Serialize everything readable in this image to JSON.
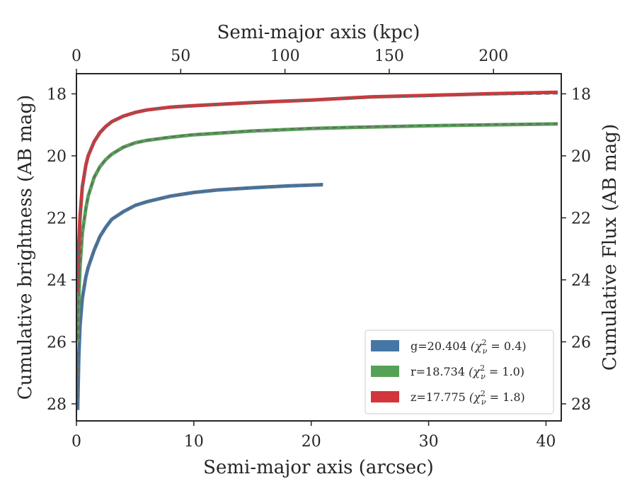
{
  "chart_data": {
    "type": "line",
    "xlabel": "Semi-major axis (arcsec)",
    "x2label": "Semi-major axis (kpc)",
    "ylabel": "Cumulative brightness (AB mag)",
    "y2label": "Cumulative Flux (AB mag)",
    "xlim": [
      0,
      41.3
    ],
    "x2lim": [
      0,
      232.5
    ],
    "ylim": [
      28.55,
      17.35
    ],
    "y_inverted": true,
    "x_ticks": [
      0,
      10,
      20,
      30,
      40
    ],
    "x_tick_labels": [
      "0",
      "10",
      "20",
      "30",
      "40"
    ],
    "x2_ticks": [
      0,
      50,
      100,
      150,
      200
    ],
    "x2_tick_labels": [
      "0",
      "50",
      "100",
      "150",
      "200"
    ],
    "y_ticks": [
      18,
      20,
      22,
      24,
      26,
      28
    ],
    "y_tick_labels": [
      "18",
      "20",
      "22",
      "24",
      "26",
      "28"
    ],
    "grid": false,
    "legend_position": "lower-right",
    "series": [
      {
        "name": "g=20.404 (χ²ν = 0.4)",
        "legend_main": "g=20.404",
        "legend_chi": "(χ",
        "legend_sup": "2",
        "legend_sub": "ν",
        "legend_end": " = 0.4)",
        "color": "#4576a6",
        "x": [
          0.1,
          0.2,
          0.3,
          0.5,
          0.8,
          1.0,
          1.5,
          2.0,
          2.5,
          3.0,
          4.0,
          5.0,
          6.0,
          8.0,
          10.0,
          12.0,
          15.0,
          18.0,
          21.0
        ],
        "y": [
          28.2,
          26.5,
          25.5,
          24.6,
          23.9,
          23.6,
          23.05,
          22.6,
          22.3,
          22.05,
          21.8,
          21.6,
          21.48,
          21.3,
          21.18,
          21.1,
          21.03,
          20.97,
          20.93
        ]
      },
      {
        "name": "r=18.734 (χ²ν = 1.0)",
        "legend_main": "r=18.734",
        "legend_chi": "(χ",
        "legend_sup": "2",
        "legend_sub": "ν",
        "legend_end": " = 1.0)",
        "color": "#57a157",
        "x": [
          0.1,
          0.2,
          0.3,
          0.5,
          0.8,
          1.0,
          1.5,
          2.0,
          2.5,
          3.0,
          4.0,
          5.0,
          6.0,
          8.0,
          10.0,
          15.0,
          20.0,
          25.0,
          30.0,
          35.0,
          41.0
        ],
        "y": [
          26.0,
          24.6,
          23.6,
          22.5,
          21.7,
          21.3,
          20.7,
          20.35,
          20.12,
          19.95,
          19.72,
          19.58,
          19.5,
          19.4,
          19.32,
          19.2,
          19.12,
          19.07,
          19.03,
          19.0,
          18.97
        ]
      },
      {
        "name": "z=17.775 (χ²ν = 1.8)",
        "legend_main": "z=17.775",
        "legend_chi": "(χ",
        "legend_sup": "2",
        "legend_sub": "ν",
        "legend_end": " = 1.8)",
        "color": "#d1363a",
        "x": [
          0.1,
          0.2,
          0.3,
          0.5,
          0.8,
          1.0,
          1.5,
          2.0,
          2.5,
          3.0,
          4.0,
          5.0,
          6.0,
          8.0,
          10.0,
          15.0,
          20.0,
          25.0,
          30.0,
          35.0,
          41.0
        ],
        "y": [
          24.4,
          22.9,
          22.0,
          21.0,
          20.3,
          20.0,
          19.55,
          19.25,
          19.05,
          18.9,
          18.72,
          18.6,
          18.52,
          18.43,
          18.38,
          18.28,
          18.2,
          18.1,
          18.05,
          18.0,
          17.95
        ]
      }
    ],
    "models": [
      {
        "color": "#666666",
        "x": [
          0.1,
          0.2,
          0.3,
          0.5,
          0.8,
          1.0,
          1.5,
          2.0,
          2.5,
          3.0,
          4.0,
          5.0,
          6.0,
          8.0,
          10.0,
          12.0,
          15.0,
          18.0,
          21.0
        ],
        "y": [
          28.1,
          26.45,
          25.45,
          24.55,
          23.88,
          23.58,
          23.02,
          22.58,
          22.28,
          22.04,
          21.79,
          21.6,
          21.47,
          21.3,
          21.18,
          21.1,
          21.02,
          20.96,
          20.9
        ]
      },
      {
        "color": "#666666",
        "x": [
          0.1,
          0.2,
          0.3,
          0.5,
          0.8,
          1.0,
          1.5,
          2.0,
          2.5,
          3.0,
          4.0,
          5.0,
          6.0,
          8.0,
          10.0,
          15.0,
          20.0,
          25.0,
          30.0,
          35.0,
          41.0
        ],
        "y": [
          25.9,
          24.55,
          23.58,
          22.48,
          21.68,
          21.3,
          20.7,
          20.34,
          20.11,
          19.95,
          19.72,
          19.58,
          19.5,
          19.39,
          19.31,
          19.19,
          19.11,
          19.06,
          19.02,
          18.99,
          18.96
        ]
      },
      {
        "color": "#666666",
        "x": [
          0.1,
          0.2,
          0.3,
          0.5,
          0.8,
          1.0,
          1.5,
          2.0,
          2.5,
          3.0,
          4.0,
          5.0,
          6.0,
          8.0,
          10.0,
          15.0,
          20.0,
          25.0,
          30.0,
          35.0,
          41.0
        ],
        "y": [
          24.3,
          22.85,
          21.98,
          20.98,
          20.3,
          20.0,
          19.55,
          19.25,
          19.05,
          18.9,
          18.72,
          18.6,
          18.52,
          18.43,
          18.38,
          18.28,
          18.2,
          18.13,
          18.07,
          18.03,
          18.0
        ]
      }
    ]
  }
}
